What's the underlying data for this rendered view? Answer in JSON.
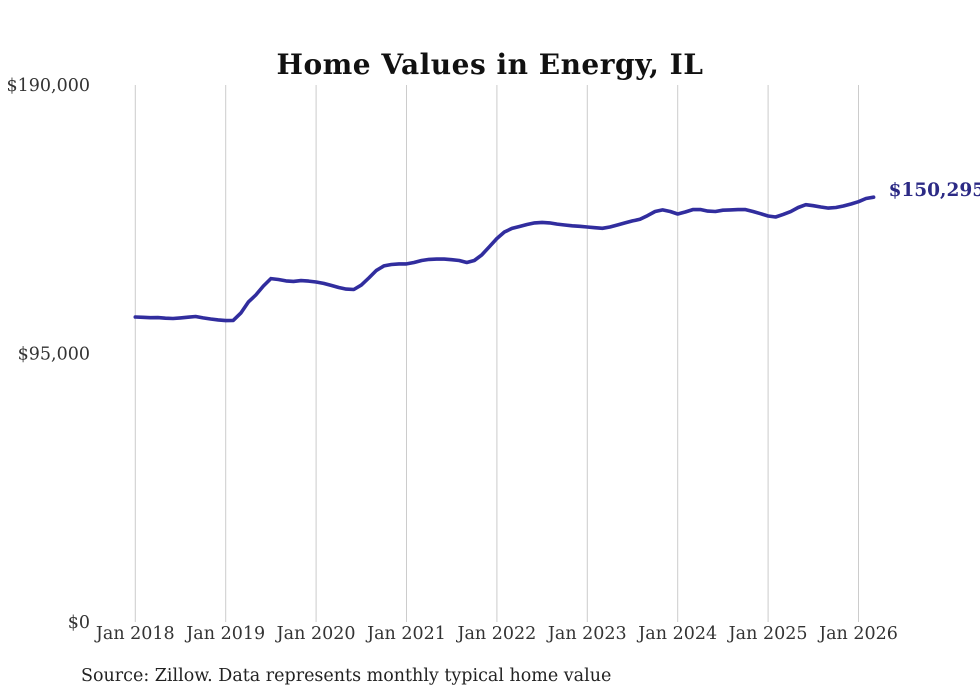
{
  "page": {
    "title": "Home Values in Energy, IL",
    "source_note": "Source: Zillow. Data represents monthly typical home value"
  },
  "chart_data": {
    "type": "line",
    "title": "Home Values in Energy, IL",
    "series_name": "Monthly typical home value",
    "ylabel": "",
    "xlabel": "",
    "ylim": [
      0,
      190000
    ],
    "grid": "vertical-yearly-only",
    "legend": "none",
    "line_color": "#312d9e",
    "grid_color": "#cccccc",
    "tick_label_color": "#333333",
    "end_label": "$150,295",
    "end_label_color": "#2c2a85",
    "y_ticks": [
      0,
      95000,
      190000
    ],
    "y_tick_labels": [
      "$0",
      "$95,000",
      "$190,000"
    ],
    "x_tick_labels": [
      "Jan 2018",
      "Jan 2019",
      "Jan 2020",
      "Jan 2021",
      "Jan 2022",
      "Jan 2023",
      "Jan 2024",
      "Jan 2025",
      "Jan 2026"
    ],
    "x": [
      "2018-01",
      "2018-02",
      "2018-03",
      "2018-04",
      "2018-05",
      "2018-06",
      "2018-07",
      "2018-08",
      "2018-09",
      "2018-10",
      "2018-11",
      "2018-12",
      "2019-01",
      "2019-02",
      "2019-03",
      "2019-04",
      "2019-05",
      "2019-06",
      "2019-07",
      "2019-08",
      "2019-09",
      "2019-10",
      "2019-11",
      "2019-12",
      "2020-01",
      "2020-02",
      "2020-03",
      "2020-04",
      "2020-05",
      "2020-06",
      "2020-07",
      "2020-08",
      "2020-09",
      "2020-10",
      "2020-11",
      "2020-12",
      "2021-01",
      "2021-02",
      "2021-03",
      "2021-04",
      "2021-05",
      "2021-06",
      "2021-07",
      "2021-08",
      "2021-09",
      "2021-10",
      "2021-11",
      "2021-12",
      "2022-01",
      "2022-02",
      "2022-03",
      "2022-04",
      "2022-05",
      "2022-06",
      "2022-07",
      "2022-08",
      "2022-09",
      "2022-10",
      "2022-11",
      "2022-12",
      "2023-01",
      "2023-02",
      "2023-03",
      "2023-04",
      "2023-05",
      "2023-06",
      "2023-07",
      "2023-08",
      "2023-09",
      "2023-10",
      "2023-11",
      "2023-12",
      "2024-01",
      "2024-02",
      "2024-03",
      "2024-04",
      "2024-05",
      "2024-06",
      "2024-07",
      "2024-08",
      "2024-09",
      "2024-10",
      "2024-11",
      "2024-12",
      "2025-01",
      "2025-02",
      "2025-03",
      "2025-04",
      "2025-05",
      "2025-06",
      "2025-07",
      "2025-08",
      "2025-09",
      "2025-10",
      "2025-11",
      "2025-12",
      "2026-01",
      "2026-02",
      "2026-03"
    ],
    "values": [
      107900,
      107800,
      107650,
      107700,
      107500,
      107400,
      107600,
      107850,
      108100,
      107600,
      107200,
      106900,
      106650,
      106700,
      109300,
      113200,
      115700,
      118900,
      121500,
      121200,
      120700,
      120500,
      120800,
      120600,
      120300,
      119800,
      119100,
      118350,
      117800,
      117650,
      119200,
      121700,
      124400,
      126000,
      126500,
      126700,
      126700,
      127200,
      127900,
      128300,
      128400,
      128400,
      128200,
      127900,
      127200,
      127900,
      129900,
      132800,
      135700,
      138000,
      139250,
      139950,
      140650,
      141200,
      141400,
      141200,
      140800,
      140450,
      140200,
      140000,
      139750,
      139500,
      139300,
      139750,
      140450,
      141200,
      141900,
      142500,
      143800,
      145250,
      145800,
      145250,
      144350,
      145050,
      145900,
      145950,
      145400,
      145250,
      145700,
      145800,
      145900,
      145900,
      145250,
      144450,
      143650,
      143300,
      144200,
      145200,
      146650,
      147650,
      147300,
      146850,
      146450,
      146650,
      147200,
      147900,
      148700,
      149850,
      150295
    ],
    "source": "Source: Zillow. Data represents monthly typical home value"
  }
}
